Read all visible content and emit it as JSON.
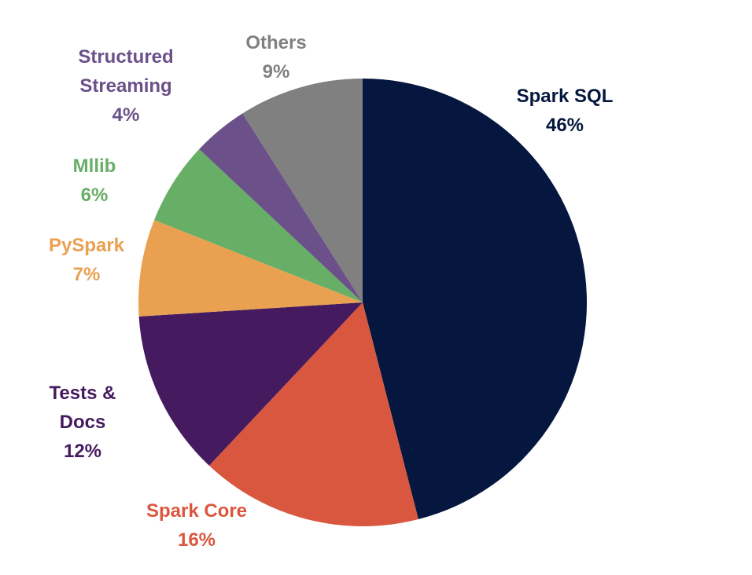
{
  "chart_data": {
    "type": "pie",
    "title": "",
    "start_angle_deg": 0,
    "direction": "clockwise",
    "slices": [
      {
        "name_lines": [
          "Spark SQL"
        ],
        "label": "Spark SQL",
        "value": 46,
        "pct_text": "46%",
        "color": "#06173F",
        "key": "spark-sql"
      },
      {
        "name_lines": [
          "Spark Core"
        ],
        "label": "Spark Core",
        "value": 16,
        "pct_text": "16%",
        "color": "#DA573F",
        "key": "spark-core"
      },
      {
        "name_lines": [
          "Tests &",
          "Docs"
        ],
        "label": "Tests & Docs",
        "value": 12,
        "pct_text": "12%",
        "color": "#461A5E",
        "key": "tests-docs"
      },
      {
        "name_lines": [
          "PySpark"
        ],
        "label": "PySpark",
        "value": 7,
        "pct_text": "7%",
        "color": "#E9A051",
        "key": "pyspark"
      },
      {
        "name_lines": [
          "Mllib"
        ],
        "label": "Mllib",
        "value": 6,
        "pct_text": "6%",
        "color": "#67AE66",
        "key": "mllib"
      },
      {
        "name_lines": [
          "Structured",
          "Streaming"
        ],
        "label": "Structured Streaming",
        "value": 4,
        "pct_text": "4%",
        "color": "#6B5089",
        "key": "structured-streaming"
      },
      {
        "name_lines": [
          "Others"
        ],
        "label": "Others",
        "value": 9,
        "pct_text": "9%",
        "color": "#808080",
        "key": "others"
      }
    ]
  }
}
